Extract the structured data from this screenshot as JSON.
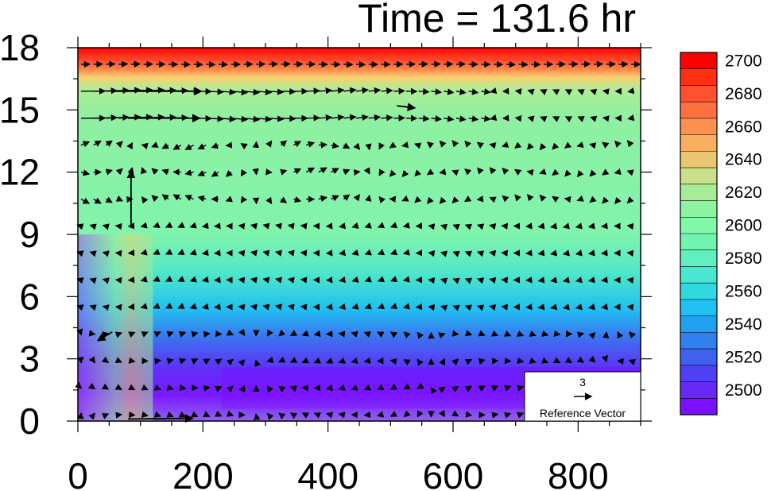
{
  "chart_data": {
    "type": "heatmap",
    "title": "Time = 131.6 hr",
    "xlabel": "",
    "ylabel": "",
    "xlim": [
      0,
      900
    ],
    "ylim": [
      0,
      18
    ],
    "x_ticks": [
      "0",
      "200",
      "400",
      "600",
      "800"
    ],
    "x_tick_values": [
      0,
      200,
      400,
      600,
      800
    ],
    "y_ticks": [
      "0",
      "3",
      "6",
      "9",
      "12",
      "15",
      "18"
    ],
    "y_tick_values": [
      0,
      3,
      6,
      9,
      12,
      15,
      18
    ],
    "colorbar": {
      "levels": [
        2700,
        2690,
        2680,
        2670,
        2660,
        2650,
        2640,
        2630,
        2620,
        2610,
        2600,
        2590,
        2580,
        2570,
        2560,
        2550,
        2540,
        2530,
        2520,
        2510,
        2500,
        2490
      ],
      "labels": [
        "2700",
        "2680",
        "2660",
        "2640",
        "2620",
        "2600",
        "2580",
        "2560",
        "2540",
        "2520",
        "2500"
      ],
      "label_values": [
        2700,
        2680,
        2660,
        2640,
        2620,
        2600,
        2580,
        2560,
        2540,
        2520,
        2500
      ],
      "colors": [
        "#ff0000",
        "#ff3010",
        "#ff5030",
        "#ff7040",
        "#ff9050",
        "#f8b060",
        "#e8c870",
        "#c8e08a",
        "#a8ec96",
        "#8cf4a0",
        "#80f8a8",
        "#70f4b0",
        "#60f0c0",
        "#48e8d0",
        "#30d8e0",
        "#20c0f0",
        "#20a0f0",
        "#3080f0",
        "#4060f0",
        "#5040f4",
        "#6828f8",
        "#7a10ff"
      ]
    },
    "reference_vector": {
      "value": "3",
      "label": "Reference Vector"
    },
    "notable_vectors": [
      {
        "x": 60,
        "y": 15.9,
        "u": 12,
        "v": 0
      },
      {
        "x": 80,
        "y": 14.6,
        "u": 10,
        "v": 0
      },
      {
        "x": 85,
        "y": 9.3,
        "u": 0,
        "v": 8
      },
      {
        "x": 80,
        "y": 0.1,
        "u": 9,
        "v": 0.1
      },
      {
        "x": 510,
        "y": 15.2,
        "u": 2.5,
        "v": -0.3
      },
      {
        "x": 55,
        "y": 4.3,
        "u": -2,
        "v": -1.2
      }
    ]
  }
}
